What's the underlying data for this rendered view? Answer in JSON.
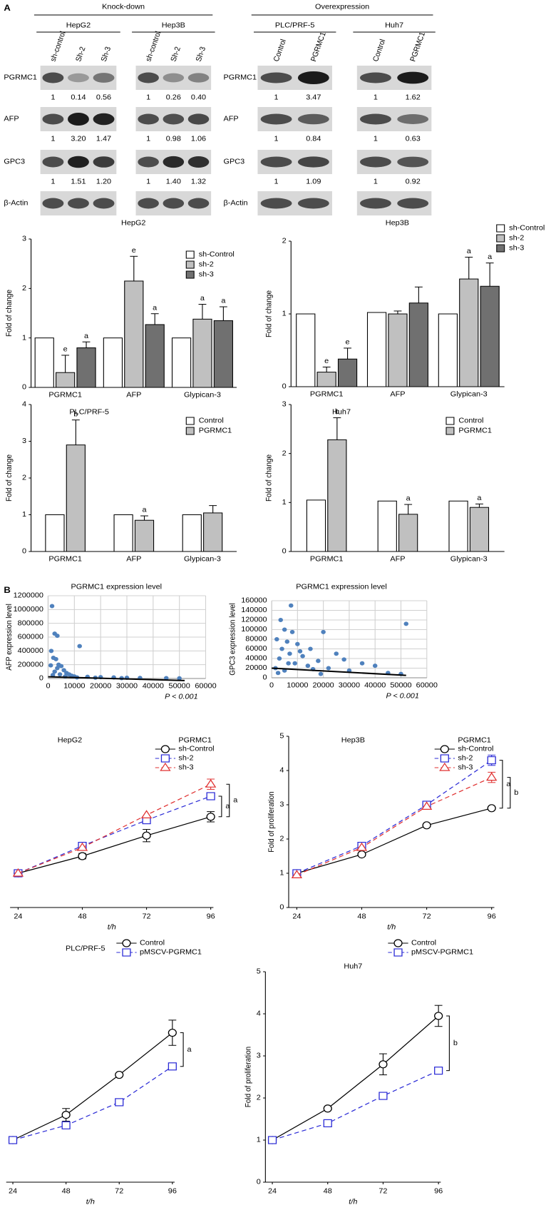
{
  "panel_labels": [
    "A",
    "B"
  ],
  "blots": {
    "rows": [
      "PGRMC1",
      "AFP",
      "GPC3",
      "β-Actin"
    ],
    "groups": [
      {
        "title": "Knock-down",
        "cells": [
          {
            "name": "HepG2",
            "lanes": [
              "sh-control",
              "Sh-2",
              "Sh-3"
            ],
            "quant": [
              [
                "1",
                "0.14",
                "0.56"
              ],
              [
                "1",
                "3.20",
                "1.47"
              ],
              [
                "1",
                "1.51",
                "1.20"
              ]
            ]
          },
          {
            "name": "Hep3B",
            "lanes": [
              "sh-control",
              "Sh-2",
              "Sh-3"
            ],
            "quant": [
              [
                "1",
                "0.26",
                "0.40"
              ],
              [
                "1",
                "0.98",
                "1.06"
              ],
              [
                "1",
                "1.40",
                "1.32"
              ]
            ]
          }
        ]
      },
      {
        "title": "Overexpression",
        "cells": [
          {
            "name": "PLC/PRF-5",
            "lanes": [
              "Control",
              "PGRMC1"
            ],
            "quant": [
              [
                "1",
                "3.47"
              ],
              [
                "1",
                "0.84"
              ],
              [
                "1",
                "1.09"
              ]
            ]
          },
          {
            "name": "Huh7",
            "lanes": [
              "Control",
              "PGRMC1"
            ],
            "quant": [
              [
                "1",
                "1.62"
              ],
              [
                "1",
                "0.63"
              ],
              [
                "1",
                "0.92"
              ]
            ]
          }
        ]
      }
    ]
  },
  "chart_data": [
    {
      "type": "bar",
      "title": "HepG2",
      "y_label": "Fold of change",
      "categories": [
        "PGRMC1",
        "AFP",
        "Glypican-3"
      ],
      "ylim": [
        0,
        3
      ],
      "yticks": [
        0,
        1,
        2,
        3
      ],
      "series": [
        {
          "name": "sh-Control",
          "color": "#ffffff",
          "values": [
            1,
            1,
            1
          ],
          "errors": [
            null,
            null,
            null
          ],
          "annotations": [
            null,
            null,
            null
          ]
        },
        {
          "name": "sh-2",
          "color": "#c0c0c0",
          "values": [
            0.3,
            2.15,
            1.38
          ],
          "errors": [
            0.35,
            0.5,
            0.3
          ],
          "annotations": [
            "e",
            "e",
            "a"
          ]
        },
        {
          "name": "sh-3",
          "color": "#707070",
          "values": [
            0.8,
            1.27,
            1.35
          ],
          "errors": [
            0.12,
            0.22,
            0.28
          ],
          "annotations": [
            "a",
            "a",
            "a"
          ]
        }
      ]
    },
    {
      "type": "bar",
      "title": "Hep3B",
      "y_label": "Fold of change",
      "categories": [
        "PGRMC1",
        "AFP",
        "Glypican-3"
      ],
      "ylim": [
        0,
        2
      ],
      "yticks": [
        0,
        1,
        2
      ],
      "series": [
        {
          "name": "sh-Control",
          "color": "#ffffff",
          "values": [
            1,
            1.02,
            1
          ],
          "errors": [
            null,
            null,
            null
          ],
          "annotations": [
            null,
            null,
            null
          ]
        },
        {
          "name": "sh-2",
          "color": "#c0c0c0",
          "values": [
            0.2,
            1.0,
            1.48
          ],
          "errors": [
            0.07,
            0.04,
            0.3
          ],
          "annotations": [
            "e",
            null,
            "a"
          ]
        },
        {
          "name": "sh-3",
          "color": "#707070",
          "values": [
            0.38,
            1.15,
            1.38
          ],
          "errors": [
            0.15,
            0.22,
            0.32
          ],
          "annotations": [
            "e",
            null,
            "a"
          ]
        }
      ]
    },
    {
      "type": "bar",
      "title": "PLC/PRF-5",
      "y_label": "Fold of change",
      "categories": [
        "PGRMC1",
        "AFP",
        "Glypican-3"
      ],
      "ylim": [
        0,
        4
      ],
      "yticks": [
        0,
        1,
        2,
        3,
        4
      ],
      "series": [
        {
          "name": "Control",
          "color": "#ffffff",
          "values": [
            1,
            1,
            1
          ],
          "errors": [
            null,
            null,
            null
          ],
          "annotations": [
            null,
            null,
            null
          ]
        },
        {
          "name": "PGRMC1",
          "color": "#c0c0c0",
          "values": [
            2.9,
            0.85,
            1.05
          ],
          "errors": [
            0.68,
            0.12,
            0.2
          ],
          "annotations": [
            "b",
            "a",
            null
          ]
        }
      ]
    },
    {
      "type": "bar",
      "title": "Huh7",
      "y_label": "Fold of change",
      "categories": [
        "PGRMC1",
        "AFP",
        "Glypican-3"
      ],
      "ylim": [
        0,
        3
      ],
      "yticks": [
        0,
        1,
        2,
        3
      ],
      "series": [
        {
          "name": "Control",
          "color": "#ffffff",
          "values": [
            1.05,
            1.03,
            1.03
          ],
          "errors": [
            null,
            null,
            null
          ],
          "annotations": [
            null,
            null,
            null
          ]
        },
        {
          "name": "PGRMC1",
          "color": "#c0c0c0",
          "values": [
            2.28,
            0.76,
            0.9
          ],
          "errors": [
            0.45,
            0.2,
            0.07
          ],
          "annotations": [
            "b",
            "a",
            "a"
          ]
        }
      ]
    },
    {
      "type": "scatter",
      "title": "PGRMC1 expression level",
      "y_label": "AFP expression level",
      "annotation": "P < 0.001",
      "color": "#4f81bd",
      "xlim": [
        0,
        60000
      ],
      "xticks": [
        0,
        10000,
        20000,
        30000,
        40000,
        50000,
        60000
      ],
      "ylim": [
        0,
        1200000
      ],
      "yticks": [
        0,
        200000,
        400000,
        600000,
        800000,
        1000000,
        1200000
      ],
      "x": [
        1500,
        2500,
        3500,
        12000,
        1200,
        2000,
        3000,
        4000,
        5000,
        1000,
        6000,
        7000,
        8000,
        3500,
        2500,
        9000,
        10000,
        15000,
        20000,
        25000,
        30000,
        35000,
        45000,
        50000,
        1800,
        4500,
        6500,
        11000,
        18000,
        28000
      ],
      "values": [
        1050000,
        650000,
        620000,
        470000,
        400000,
        300000,
        280000,
        200000,
        180000,
        190000,
        120000,
        80000,
        60000,
        150000,
        100000,
        40000,
        30000,
        25000,
        20000,
        15000,
        10000,
        8000,
        5000,
        3000,
        50000,
        60000,
        30000,
        15000,
        12000,
        5000
      ],
      "trendline": {
        "x": [
          0,
          52000
        ],
        "values": [
          25000,
          -30000
        ]
      }
    },
    {
      "type": "scatter",
      "title": "PGRMC1 expression level",
      "y_label": "GPC3 expression level",
      "annotation": "P < 0.001",
      "color": "#4f81bd",
      "xlim": [
        0,
        60000
      ],
      "xticks": [
        0,
        10000,
        20000,
        30000,
        40000,
        50000,
        60000
      ],
      "ylim": [
        0,
        160000
      ],
      "yticks": [
        0,
        20000,
        40000,
        60000,
        80000,
        100000,
        120000,
        140000,
        160000
      ],
      "x": [
        7500,
        52000,
        3500,
        5000,
        8000,
        20000,
        2000,
        6000,
        10000,
        15000,
        4000,
        25000,
        12000,
        35000,
        40000,
        18000,
        3000,
        7000,
        9000,
        22000,
        30000,
        1500,
        45000,
        50000,
        14000,
        5000,
        28000,
        11000,
        16000,
        6500,
        2500,
        19000
      ],
      "values": [
        150000,
        112000,
        120000,
        100000,
        95000,
        95000,
        80000,
        75000,
        70000,
        60000,
        60000,
        50000,
        45000,
        30000,
        25000,
        35000,
        40000,
        50000,
        30000,
        20000,
        15000,
        20000,
        10000,
        8000,
        25000,
        15000,
        38000,
        55000,
        18000,
        30000,
        10000,
        8000
      ],
      "trendline": {
        "x": [
          0,
          52000
        ],
        "values": [
          20000,
          5000
        ]
      }
    },
    {
      "type": "line",
      "title": "HepG2",
      "legend_title": "PGRMC1",
      "x_label": "t/h",
      "x": [
        24,
        48,
        72,
        96
      ],
      "xlim": [
        21,
        97
      ],
      "xticks": [
        24,
        48,
        72,
        96
      ],
      "ylim": [
        0,
        5
      ],
      "annotations": [
        "a",
        "a"
      ],
      "series": [
        {
          "name": "sh-Control",
          "color": "#000000",
          "dash": false,
          "marker": "circle",
          "values": [
            1,
            1.5,
            2.1,
            2.65
          ],
          "errors": [
            0.05,
            0.08,
            0.18,
            0.15
          ]
        },
        {
          "name": "sh-2",
          "color": "#2b2bd6",
          "dash": true,
          "marker": "square",
          "values": [
            1,
            1.8,
            2.55,
            3.25
          ],
          "errors": [
            null,
            null,
            null,
            null
          ]
        },
        {
          "name": "sh-3",
          "color": "#e03030",
          "dash": true,
          "marker": "triangle",
          "values": [
            1,
            1.75,
            2.7,
            3.6
          ],
          "errors": [
            null,
            null,
            null,
            0.15
          ]
        }
      ]
    },
    {
      "type": "line",
      "title": "Hep3B",
      "legend_title": "PGRMC1",
      "x_label": "t/h",
      "y_label": "Fold of proliferation",
      "x": [
        24,
        48,
        72,
        96
      ],
      "xlim": [
        21,
        97
      ],
      "xticks": [
        24,
        48,
        72,
        96
      ],
      "ylim": [
        0,
        5
      ],
      "yticks": [
        0,
        1,
        2,
        3,
        4,
        5
      ],
      "annotations": [
        "a",
        "b"
      ],
      "series": [
        {
          "name": "sh-Control",
          "color": "#000000",
          "dash": false,
          "marker": "circle",
          "values": [
            1,
            1.55,
            2.4,
            2.9
          ],
          "errors": [
            null,
            null,
            null,
            null
          ]
        },
        {
          "name": "sh-2",
          "color": "#2b2bd6",
          "dash": true,
          "marker": "square",
          "values": [
            1,
            1.8,
            3.0,
            4.3
          ],
          "errors": [
            null,
            null,
            null,
            0.15
          ]
        },
        {
          "name": "sh-3",
          "color": "#e03030",
          "dash": true,
          "marker": "triangle",
          "values": [
            0.95,
            1.75,
            2.95,
            3.8
          ],
          "errors": [
            null,
            null,
            null,
            0.15
          ]
        }
      ]
    },
    {
      "type": "line",
      "title": "PLC/PRF-5",
      "x_label": "t/h",
      "x": [
        24,
        48,
        72,
        96
      ],
      "xlim": [
        21,
        97
      ],
      "xticks": [
        24,
        48,
        72,
        96
      ],
      "ylim": [
        0,
        5
      ],
      "annotations": [
        "a"
      ],
      "series": [
        {
          "name": "Control",
          "color": "#000000",
          "dash": false,
          "marker": "circle",
          "values": [
            1,
            1.6,
            2.55,
            3.55
          ],
          "errors": [
            null,
            0.15,
            null,
            0.3
          ]
        },
        {
          "name": "pMSCV-PGRMC1",
          "color": "#2b2bd6",
          "dash": true,
          "marker": "square",
          "values": [
            1,
            1.35,
            1.9,
            2.75
          ],
          "errors": [
            null,
            null,
            null,
            null
          ]
        }
      ]
    },
    {
      "type": "line",
      "title": "Huh7",
      "x_label": "t/h",
      "y_label": "Fold of proliferation",
      "x": [
        24,
        48,
        72,
        96
      ],
      "xlim": [
        21,
        97
      ],
      "xticks": [
        24,
        48,
        72,
        96
      ],
      "ylim": [
        0,
        5
      ],
      "yticks": [
        0,
        1,
        2,
        3,
        4,
        5
      ],
      "annotations": [
        "b"
      ],
      "series": [
        {
          "name": "Control",
          "color": "#000000",
          "dash": false,
          "marker": "circle",
          "values": [
            1,
            1.75,
            2.8,
            3.95
          ],
          "errors": [
            null,
            null,
            0.25,
            0.25
          ]
        },
        {
          "name": "pMSCV-PGRMC1",
          "color": "#2b2bd6",
          "dash": true,
          "marker": "square",
          "values": [
            1,
            1.4,
            2.05,
            2.65
          ],
          "errors": [
            null,
            null,
            null,
            null
          ]
        }
      ]
    }
  ]
}
